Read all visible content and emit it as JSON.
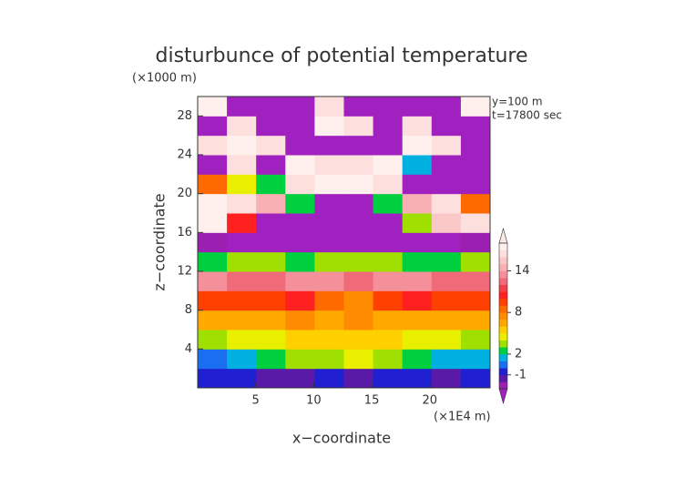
{
  "chart_data": {
    "type": "contour",
    "title": "disturbunce of potential temperature",
    "y_unit": "(×1000 m)",
    "x_unit": "(×1E4 m)",
    "xlabel": "x−coordinate",
    "ylabel": "z−coordinate",
    "annotations": [
      "y=100 m",
      "t=17800 sec"
    ],
    "xlim": [
      0,
      25.2
    ],
    "ylim": [
      0,
      30
    ],
    "xticks": [
      5,
      10,
      15,
      20
    ],
    "yticks": [
      4,
      8,
      12,
      16,
      20,
      24,
      28
    ],
    "field": {
      "x": [
        1.26,
        3.78,
        6.3,
        8.82,
        11.34,
        13.86,
        16.38,
        18.9,
        21.42,
        23.94
      ],
      "z": [
        1,
        3,
        5,
        7,
        9,
        11,
        13,
        15,
        17,
        19,
        21,
        23,
        25,
        27,
        29
      ],
      "values": [
        [
          -1,
          -1,
          -2,
          -2,
          -1,
          -2,
          -1,
          -1,
          -2,
          -1
        ],
        [
          0,
          1,
          2,
          3,
          3,
          4,
          3,
          2,
          1,
          1
        ],
        [
          3,
          4,
          4,
          5,
          5,
          5,
          5,
          4,
          4,
          3
        ],
        [
          6,
          6,
          6,
          7,
          6,
          7,
          6,
          6,
          6,
          6
        ],
        [
          9,
          9,
          9,
          10,
          8,
          7,
          9,
          10,
          9,
          9
        ],
        [
          13,
          12,
          12,
          13,
          13,
          12,
          13,
          13,
          12,
          12
        ],
        [
          2,
          3,
          3,
          2,
          3,
          3,
          3,
          2,
          2,
          3
        ],
        [
          -3,
          -4,
          -4,
          -4,
          -4,
          -4,
          -4,
          -4,
          -4,
          -3
        ],
        [
          17,
          10,
          -4,
          -4,
          -4,
          -4,
          -4,
          3,
          15,
          16
        ],
        [
          17,
          16,
          14,
          2,
          -4,
          -4,
          2,
          14,
          16,
          8
        ],
        [
          8,
          4,
          2,
          16,
          17,
          17,
          16,
          -4,
          -4,
          -4
        ],
        [
          -4,
          16,
          -4,
          17,
          16,
          16,
          17,
          1,
          -4,
          -4
        ],
        [
          16,
          17,
          16,
          -4,
          -4,
          -4,
          -4,
          17,
          16,
          -4
        ],
        [
          -4,
          16,
          -4,
          -4,
          17,
          16,
          -4,
          16,
          -4,
          -4
        ],
        [
          17,
          -4,
          -4,
          -4,
          16,
          -4,
          -4,
          -4,
          -4,
          17
        ]
      ]
    },
    "colorbar": {
      "levels": [
        -3,
        -2,
        -1,
        0,
        1,
        2,
        3,
        4,
        5,
        6,
        7,
        8,
        9,
        10,
        11,
        12,
        13,
        14,
        15,
        16,
        17,
        18
      ],
      "colors": [
        "#9b1fb0",
        "#5a1aa8",
        "#2020d0",
        "#1a6ef0",
        "#00b0e0",
        "#00d040",
        "#9fe000",
        "#e8f000",
        "#ffd000",
        "#ffa800",
        "#ff8c00",
        "#ff6a00",
        "#ff4000",
        "#ff2020",
        "#f0404a",
        "#f06a7a",
        "#f4909a",
        "#f8b0b4",
        "#fbc8c8",
        "#fde0de",
        "#fff0ee"
      ],
      "under_color": "#a020c0",
      "over_color": "#fde8e8",
      "ticks": [
        -1,
        2,
        8,
        14
      ]
    }
  }
}
